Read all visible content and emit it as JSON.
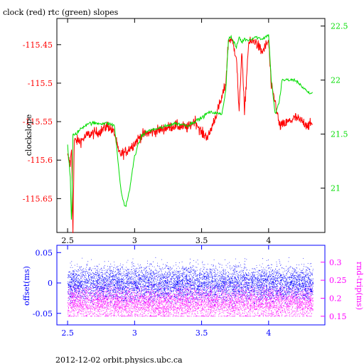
{
  "title": "clock (red) rtc (green) slopes",
  "footer": "2012-12-02 orbit.physics.ubc.ca",
  "colors": {
    "clock": "#ff0000",
    "rtc": "#00dd00",
    "offset": "#0000ff",
    "rndtrip": "#ff00ff",
    "frame": "#000000"
  },
  "chart_data": [
    {
      "type": "line",
      "title": "clock (red) rtc (green) slopes",
      "xlabel": "",
      "ylabel": "clockslope",
      "y2label": "",
      "xlim": [
        2.42,
        4.42
      ],
      "ylim": [
        -115.694,
        -115.416
      ],
      "y2lim": [
        20.59,
        22.57
      ],
      "x_ticks": [
        2.5,
        3,
        3.5,
        4
      ],
      "x_tick_labels": [
        "2.5",
        "3",
        "3.5",
        "4"
      ],
      "y_ticks": [
        -115.45,
        -115.5,
        -115.55,
        -115.6,
        -115.65
      ],
      "y_tick_labels": [
        "-115.45",
        "-115.5",
        "-115.55",
        "-115.6",
        "-115.65"
      ],
      "y2_ticks": [
        22.5,
        22,
        21.5,
        21
      ],
      "y2_tick_labels": [
        "22.5",
        "22",
        "21.5",
        "21"
      ],
      "series": [
        {
          "name": "clock",
          "axis": "left",
          "x": [
            2.5,
            2.52,
            2.53,
            2.54,
            2.55,
            2.56,
            2.6,
            2.65,
            2.7,
            2.75,
            2.8,
            2.85,
            2.88,
            2.9,
            2.93,
            2.96,
            3.0,
            3.05,
            3.1,
            3.2,
            3.3,
            3.4,
            3.45,
            3.5,
            3.55,
            3.6,
            3.65,
            3.68,
            3.7,
            3.72,
            3.76,
            3.78,
            3.8,
            3.82,
            3.85,
            3.9,
            3.95,
            4.0,
            4.02,
            4.05,
            4.08,
            4.1,
            4.2,
            4.3,
            4.33
          ],
          "y": [
            -115.595,
            -115.605,
            -115.585,
            -115.69,
            -115.575,
            -115.575,
            -115.575,
            -115.567,
            -115.565,
            -115.562,
            -115.555,
            -115.565,
            -115.59,
            -115.592,
            -115.59,
            -115.585,
            -115.578,
            -115.568,
            -115.565,
            -115.56,
            -115.555,
            -115.558,
            -115.548,
            -115.565,
            -115.57,
            -115.545,
            -115.52,
            -115.5,
            -115.445,
            -115.442,
            -115.465,
            -115.54,
            -115.455,
            -115.54,
            -115.448,
            -115.445,
            -115.46,
            -115.445,
            -115.505,
            -115.525,
            -115.555,
            -115.555,
            -115.545,
            -115.555,
            -115.552
          ]
        },
        {
          "name": "rtc",
          "axis": "right",
          "x": [
            2.5,
            2.52,
            2.53,
            2.54,
            2.55,
            2.56,
            2.6,
            2.65,
            2.7,
            2.75,
            2.8,
            2.85,
            2.88,
            2.9,
            2.93,
            2.96,
            3.0,
            3.05,
            3.1,
            3.2,
            3.3,
            3.4,
            3.45,
            3.5,
            3.55,
            3.6,
            3.65,
            3.68,
            3.7,
            3.72,
            3.76,
            3.78,
            3.8,
            3.82,
            3.85,
            3.9,
            3.95,
            4.0,
            4.02,
            4.05,
            4.08,
            4.1,
            4.2,
            4.3,
            4.33
          ],
          "y": [
            21.4,
            21.1,
            20.62,
            21.5,
            21.48,
            21.5,
            21.55,
            21.6,
            21.6,
            21.6,
            21.6,
            21.58,
            21.2,
            20.96,
            20.82,
            20.96,
            21.3,
            21.48,
            21.53,
            21.56,
            21.6,
            21.58,
            21.62,
            21.65,
            21.7,
            21.7,
            21.68,
            21.9,
            22.38,
            22.4,
            22.3,
            22.4,
            22.35,
            22.38,
            22.37,
            22.4,
            22.38,
            22.42,
            22.0,
            21.68,
            21.8,
            22.0,
            22.0,
            21.88,
            21.88
          ]
        }
      ]
    },
    {
      "type": "scatter",
      "title": "",
      "xlabel": "",
      "ylabel": "offset(ms)",
      "y2label": "rnd-trip(ms)",
      "xlim": [
        2.42,
        4.42
      ],
      "ylim": [
        -0.069,
        0.062
      ],
      "y2lim": [
        0.126,
        0.347
      ],
      "x_ticks": [
        2.5,
        3,
        3.5,
        4
      ],
      "x_tick_labels": [
        "2.5",
        "3",
        "3.5",
        "4"
      ],
      "y_ticks": [
        0.05,
        0,
        -0.05
      ],
      "y_tick_labels": [
        "0.05",
        "0",
        "-0.05"
      ],
      "y2_ticks": [
        0.3,
        0.25,
        0.2,
        0.15
      ],
      "y2_tick_labels": [
        "0.3",
        "0.25",
        "0.2",
        "0.15"
      ],
      "series": [
        {
          "name": "offset",
          "axis": "left",
          "x_range": [
            2.5,
            4.33
          ],
          "y_center": 0.0,
          "y_spread": 0.014,
          "y_min": -0.05,
          "y_max": 0.06
        },
        {
          "name": "rnd-trip",
          "axis": "right",
          "x_range": [
            2.5,
            4.33
          ],
          "y_center": 0.19,
          "y_spread": 0.023,
          "y_min": 0.15,
          "y_max": 0.33
        }
      ]
    }
  ]
}
